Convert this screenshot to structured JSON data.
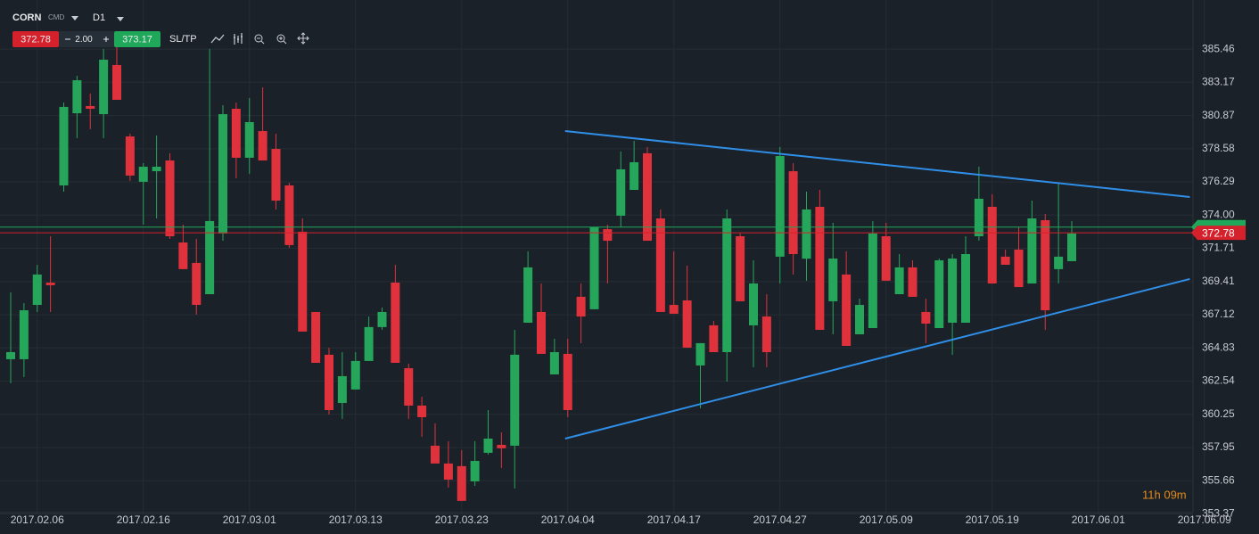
{
  "toolbar": {
    "symbol": "CORN",
    "market": "CMD",
    "timeframe": "D1",
    "lot": "2.00",
    "sltp": "SL/TP"
  },
  "countdown": "11h 09m",
  "chart_data": {
    "type": "candlestick",
    "categories": [
      null,
      null,
      "2017.02.06",
      null,
      null,
      null,
      null,
      null,
      null,
      null,
      "2017.02.16",
      null,
      null,
      null,
      null,
      null,
      null,
      null,
      "2017.03.01",
      null,
      null,
      null,
      null,
      null,
      null,
      null,
      "2017.03.13",
      null,
      null,
      null,
      null,
      null,
      null,
      null,
      "2017.03.23",
      null,
      null,
      null,
      null,
      null,
      null,
      null,
      "2017.04.04",
      null,
      null,
      null,
      null,
      null,
      null,
      null,
      "2017.04.17",
      null,
      null,
      null,
      null,
      null,
      null,
      null,
      "2017.04.27",
      null,
      null,
      null,
      null,
      null,
      null,
      null,
      "2017.05.09",
      null,
      null,
      null,
      null,
      null,
      null,
      null,
      "2017.05.19",
      null,
      null,
      null,
      null,
      null,
      null,
      null,
      "2017.06.01",
      null,
      null,
      null,
      null,
      null,
      null,
      null,
      "2017.06.09"
    ],
    "open": [
      364.05,
      364.05,
      367.8,
      369.34,
      376.05,
      381.03,
      381.53,
      380.97,
      384.36,
      379.43,
      376.3,
      377.03,
      377.77,
      372.11,
      370.7,
      368.54,
      372.73,
      381.34,
      377.96,
      379.8,
      378.57,
      376.05,
      372.85,
      367.31,
      364.36,
      361.03,
      361.96,
      363.93,
      366.27,
      369.34,
      363.43,
      360.85,
      358.08,
      356.85,
      356.67,
      355.62,
      357.59,
      358.14,
      358.08,
      366.57,
      367.31,
      363.0,
      364.42,
      368.36,
      367.5,
      373.03,
      373.96,
      375.74,
      378.27,
      373.77,
      367.8,
      368.11,
      363.62,
      366.39,
      364.54,
      372.54,
      366.39,
      367.0,
      371.13,
      377.03,
      370.99,
      374.57,
      368.05,
      369.9,
      365.77,
      366.2,
      372.54,
      368.54,
      370.39,
      367.31,
      366.2,
      366.57,
      366.57,
      372.54,
      374.57,
      371.13,
      371.62,
      369.28,
      373.65,
      370.27,
      370.82,
      null,
      null,
      null,
      null,
      null,
      null,
      null,
      null,
      null,
      null
    ],
    "high": [
      368.67,
      367.93,
      370.57,
      372.54,
      381.77,
      383.62,
      382.39,
      385.47,
      385.65,
      379.62,
      377.59,
      379.5,
      378.27,
      373.34,
      372.36,
      385.47,
      381.59,
      381.77,
      382.08,
      382.82,
      379.62,
      376.23,
      373.77,
      367.31,
      364.85,
      364.54,
      364.54,
      367.0,
      367.62,
      370.57,
      363.74,
      361.46,
      359.62,
      358.39,
      357.77,
      358.39,
      360.54,
      359.0,
      366.08,
      371.5,
      369.28,
      365.47,
      365.47,
      369.28,
      373.16,
      373.34,
      378.39,
      379.13,
      378.7,
      374.39,
      371.5,
      370.51,
      365.16,
      366.7,
      374.39,
      372.73,
      370.88,
      368.54,
      378.7,
      377.59,
      375.62,
      375.74,
      373.47,
      371.5,
      368.23,
      373.59,
      373.47,
      371.31,
      370.88,
      368.23,
      371.0,
      371.31,
      372.54,
      377.34,
      375.44,
      371.62,
      373.16,
      375.0,
      374.08,
      376.23,
      373.59,
      null,
      null,
      null,
      null,
      null,
      null,
      null,
      null,
      null,
      null
    ],
    "low": [
      362.39,
      362.82,
      367.31,
      367.31,
      375.62,
      379.31,
      379.93,
      379.31,
      381.96,
      376.36,
      373.34,
      373.77,
      372.36,
      370.27,
      367.13,
      368.54,
      372.23,
      376.54,
      376.85,
      377.77,
      374.39,
      371.74,
      365.96,
      363.8,
      360.23,
      359.93,
      361.96,
      363.93,
      366.08,
      363.8,
      359.93,
      358.7,
      356.85,
      355.19,
      354.27,
      355.31,
      357.47,
      356.54,
      355.13,
      366.57,
      364.42,
      363.0,
      360.05,
      365.16,
      367.5,
      369.28,
      373.16,
      375.74,
      372.23,
      367.31,
      367.19,
      364.85,
      360.67,
      364.54,
      362.51,
      368.05,
      363.5,
      363.5,
      369.28,
      369.9,
      369.47,
      366.08,
      365.77,
      364.97,
      365.77,
      366.2,
      369.47,
      368.54,
      368.36,
      365.16,
      366.2,
      364.36,
      366.57,
      372.23,
      369.28,
      370.57,
      369.03,
      369.28,
      366.08,
      369.28,
      370.82,
      null,
      null,
      null,
      null,
      null,
      null,
      null,
      null,
      null,
      null
    ],
    "close": [
      364.54,
      367.43,
      369.9,
      369.16,
      381.47,
      383.31,
      381.34,
      384.73,
      381.96,
      376.73,
      377.34,
      377.34,
      372.54,
      370.27,
      367.8,
      373.59,
      380.97,
      377.96,
      380.42,
      377.77,
      375.0,
      371.93,
      365.96,
      363.8,
      360.54,
      362.88,
      363.93,
      366.27,
      367.31,
      363.8,
      360.85,
      360.05,
      356.85,
      355.74,
      354.27,
      357.03,
      358.57,
      357.9,
      364.36,
      370.39,
      364.42,
      364.54,
      360.54,
      367.0,
      373.16,
      372.23,
      377.16,
      377.65,
      372.23,
      367.31,
      367.19,
      364.85,
      365.16,
      364.54,
      373.77,
      368.05,
      369.28,
      364.54,
      378.08,
      371.31,
      374.39,
      366.08,
      371.0,
      364.97,
      367.8,
      372.73,
      369.47,
      370.39,
      368.36,
      366.51,
      370.88,
      371.0,
      371.31,
      375.13,
      369.28,
      370.57,
      369.03,
      373.77,
      367.43,
      371.13,
      372.73,
      null,
      null,
      null,
      null,
      null,
      null,
      null,
      null,
      null,
      null
    ],
    "up_color": "#26a65b",
    "down_color": "#e0323c",
    "ylim": [
      353.4,
      388.85
    ],
    "yticks": [
      385.46,
      383.17,
      380.87,
      378.58,
      376.29,
      {
        "value": 374.0,
        "label": "374.00"
      },
      371.71,
      369.41,
      367.12,
      364.83,
      362.54,
      360.25,
      357.95,
      355.66,
      353.37
    ],
    "grid": true,
    "price_lines": [
      {
        "value": 373.17,
        "color": "#1fa85a"
      },
      {
        "value": 372.78,
        "color": "#d4212b"
      }
    ],
    "trendlines": [
      {
        "color": "#2f8fe8",
        "points": [
          [
            41.8,
            379.8
          ],
          [
            88.9,
            375.25
          ]
        ]
      },
      {
        "color": "#2f8fe8",
        "points": [
          [
            41.8,
            358.57
          ],
          [
            88.9,
            369.59
          ]
        ]
      }
    ]
  }
}
